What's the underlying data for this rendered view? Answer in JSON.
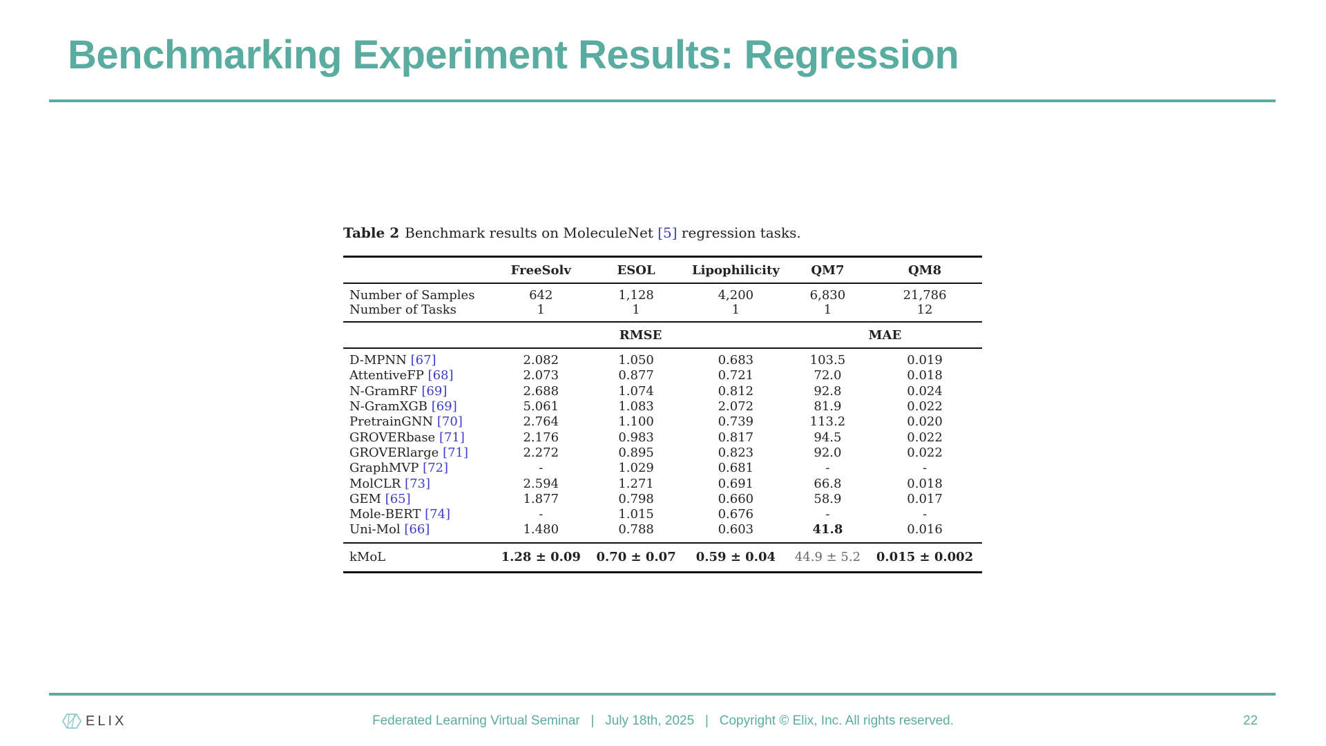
{
  "colors": {
    "accent": "#5aaba0",
    "ref": "#3a3acc"
  },
  "header": {
    "title": "Benchmarking Experiment Results: Regression"
  },
  "table": {
    "caption_label": "Table 2",
    "caption_pre": "Benchmark results on MoleculeNet ",
    "caption_ref": "[5]",
    "caption_post": " regression tasks.",
    "columns": [
      "",
      "FreeSolv",
      "ESOL",
      "Lipophilicity",
      "QM7",
      "QM8"
    ],
    "stats": [
      {
        "label": "Number of Samples",
        "values": [
          "642",
          "1,128",
          "4,200",
          "6,830",
          "21,786"
        ]
      },
      {
        "label": "Number of Tasks",
        "values": [
          "1",
          "1",
          "1",
          "1",
          "12"
        ]
      }
    ],
    "metrics": {
      "rmse": "RMSE",
      "mae": "MAE"
    },
    "rows": [
      {
        "name": "D-MPNN",
        "ref": "[67]",
        "values": [
          "2.082",
          "1.050",
          "0.683",
          "103.5",
          "0.019"
        ],
        "bold": [
          false,
          false,
          false,
          false,
          false
        ]
      },
      {
        "name": "AttentiveFP",
        "ref": "[68]",
        "values": [
          "2.073",
          "0.877",
          "0.721",
          "72.0",
          "0.018"
        ],
        "bold": [
          false,
          false,
          false,
          false,
          false
        ]
      },
      {
        "name": "N-GramRF",
        "ref": "[69]",
        "values": [
          "2.688",
          "1.074",
          "0.812",
          "92.8",
          "0.024"
        ],
        "bold": [
          false,
          false,
          false,
          false,
          false
        ]
      },
      {
        "name": "N-GramXGB",
        "ref": "[69]",
        "values": [
          "5.061",
          "1.083",
          "2.072",
          "81.9",
          "0.022"
        ],
        "bold": [
          false,
          false,
          false,
          false,
          false
        ]
      },
      {
        "name": "PretrainGNN",
        "ref": "[70]",
        "values": [
          "2.764",
          "1.100",
          "0.739",
          "113.2",
          "0.020"
        ],
        "bold": [
          false,
          false,
          false,
          false,
          false
        ]
      },
      {
        "name": "GROVERbase",
        "ref": "[71]",
        "values": [
          "2.176",
          "0.983",
          "0.817",
          "94.5",
          "0.022"
        ],
        "bold": [
          false,
          false,
          false,
          false,
          false
        ]
      },
      {
        "name": "GROVERlarge",
        "ref": "[71]",
        "values": [
          "2.272",
          "0.895",
          "0.823",
          "92.0",
          "0.022"
        ],
        "bold": [
          false,
          false,
          false,
          false,
          false
        ]
      },
      {
        "name": "GraphMVP",
        "ref": "[72]",
        "values": [
          "-",
          "1.029",
          "0.681",
          "-",
          "-"
        ],
        "bold": [
          false,
          false,
          false,
          false,
          false
        ]
      },
      {
        "name": "MolCLR",
        "ref": "[73]",
        "values": [
          "2.594",
          "1.271",
          "0.691",
          "66.8",
          "0.018"
        ],
        "bold": [
          false,
          false,
          false,
          false,
          false
        ]
      },
      {
        "name": "GEM",
        "ref": "[65]",
        "values": [
          "1.877",
          "0.798",
          "0.660",
          "58.9",
          "0.017"
        ],
        "bold": [
          false,
          false,
          false,
          false,
          false
        ]
      },
      {
        "name": "Mole-BERT",
        "ref": "[74]",
        "values": [
          "-",
          "1.015",
          "0.676",
          "-",
          "-"
        ],
        "bold": [
          false,
          false,
          false,
          false,
          false
        ]
      },
      {
        "name": "Uni-Mol",
        "ref": "[66]",
        "values": [
          "1.480",
          "0.788",
          "0.603",
          "41.8",
          "0.016"
        ],
        "bold": [
          false,
          false,
          false,
          true,
          false
        ]
      }
    ],
    "kmol": {
      "name": "kMoL",
      "values": [
        "1.28 ± 0.09",
        "0.70 ± 0.07",
        "0.59 ± 0.04",
        "44.9 ± 5.2",
        "0.015 ± 0.002"
      ],
      "bold": [
        true,
        true,
        true,
        false,
        true
      ]
    }
  },
  "footer": {
    "logo": "ELIX",
    "text": "Federated Learning Virtual Seminar   |   July 18th, 2025   |   Copyright © Elix, Inc. All rights reserved.",
    "page": "22"
  }
}
